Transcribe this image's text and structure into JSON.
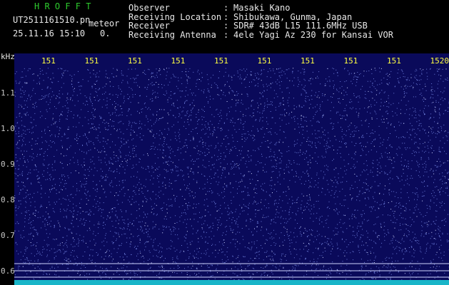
{
  "header": {
    "app": "H R O F F T",
    "file": "UT2511161510.pn",
    "tag": "meteor",
    "datetime": "25.11.16 15:10",
    "level": "0.",
    "fields": [
      {
        "label": "Observer",
        "value": "Masaki Kano"
      },
      {
        "label": "Receiving Location",
        "value": "Shibukawa, Gunma, Japan"
      },
      {
        "label": "Receiver",
        "value": "SDR# 43dB L15 111.6MHz USB"
      },
      {
        "label": "Receiving Antenna",
        "value": "4ele Yagi Az 230 for Kansai VOR"
      }
    ],
    "separator": ":"
  },
  "spectrogram": {
    "unit": "kHz",
    "y_labels": [
      "1.1",
      "1.0",
      "0.9",
      "0.8",
      "0.7",
      "0.6"
    ],
    "x_labels": [
      "151",
      "151",
      "151",
      "151",
      "151",
      "151",
      "151",
      "151",
      "151",
      "1520"
    ]
  }
}
